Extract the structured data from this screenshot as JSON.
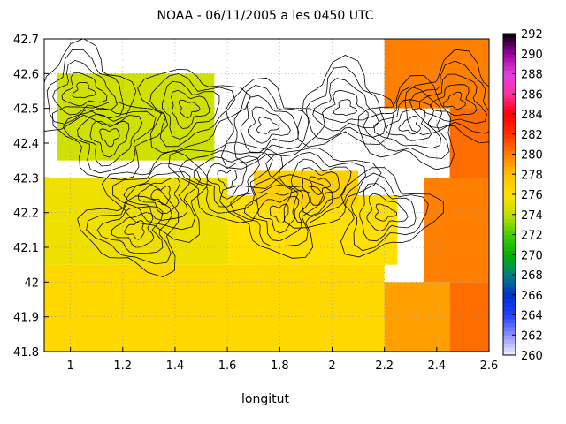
{
  "chart_data": {
    "type": "heatmap",
    "title": "NOAA - 06/11/2005 a les 0450 UTC",
    "xlabel": "longitut",
    "ylabel": "",
    "xlim": [
      0.9,
      2.6
    ],
    "ylim": [
      41.8,
      42.7
    ],
    "x_ticks": [
      "1",
      "1.2",
      "1.4",
      "1.6",
      "1.8",
      "2",
      "2.2",
      "2.4",
      "2.6"
    ],
    "y_ticks": [
      "41.8",
      "41.9",
      "42",
      "42.1",
      "42.2",
      "42.3",
      "42.4",
      "42.5",
      "42.6",
      "42.7"
    ],
    "grid": true,
    "colorbar": {
      "min": 260,
      "max": 292,
      "ticks": [
        "260",
        "262",
        "264",
        "266",
        "268",
        "270",
        "272",
        "274",
        "276",
        "278",
        "280",
        "282",
        "284",
        "286",
        "288",
        "290",
        "292"
      ],
      "palette": [
        "#f4f0ff",
        "#9090ff",
        "#2040ff",
        "#0030d0",
        "#008080",
        "#00b000",
        "#40d000",
        "#c0e000",
        "#ffe000",
        "#ffc000",
        "#ff8000",
        "#ff3000",
        "#ff0000",
        "#ff30a0",
        "#e040e0",
        "#a000a0",
        "#000000"
      ]
    },
    "field_description": "Sea surface temperature field; land areas blank with black elevation contours in the north; warm (~278-282 K) water offshore to the east and southeast, ~276 K elsewhere over the sea.",
    "regions": [
      {
        "lon": [
          0.9,
          2.2
        ],
        "lat": [
          41.8,
          42.05
        ],
        "value": 276.5
      },
      {
        "lon": [
          0.9,
          1.6
        ],
        "lat": [
          42.05,
          42.3
        ],
        "value": 275.5
      },
      {
        "lon": [
          1.6,
          2.25
        ],
        "lat": [
          42.05,
          42.25
        ],
        "value": 276
      },
      {
        "lon": [
          2.2,
          2.45
        ],
        "lat": [
          41.8,
          42.0
        ],
        "value": 279
      },
      {
        "lon": [
          2.45,
          2.6
        ],
        "lat": [
          41.8,
          42.0
        ],
        "value": 280.5
      },
      {
        "lon": [
          2.35,
          2.6
        ],
        "lat": [
          42.0,
          42.3
        ],
        "value": 280
      },
      {
        "lon": [
          2.45,
          2.6
        ],
        "lat": [
          42.3,
          42.55
        ],
        "value": 280.5
      },
      {
        "lon": [
          2.2,
          2.6
        ],
        "lat": [
          42.5,
          42.7
        ],
        "value": 280
      },
      {
        "lon": [
          0.95,
          1.55
        ],
        "lat": [
          42.35,
          42.6
        ],
        "value": 274.5
      },
      {
        "lon": [
          1.7,
          2.1
        ],
        "lat": [
          42.22,
          42.32
        ],
        "value": 277
      }
    ]
  }
}
